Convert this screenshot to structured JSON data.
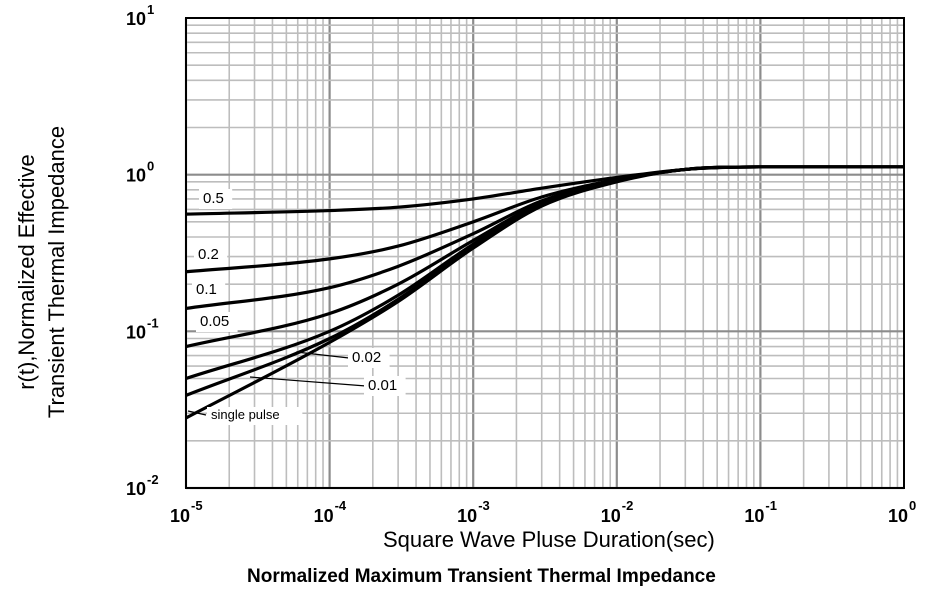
{
  "chart_data": {
    "type": "line",
    "title": "Normalized Maximum Transient Thermal Impedance",
    "xlabel": "Square Wave Pluse Duration(sec)",
    "ylabel_lines": [
      "r(t),Normalized Effective",
      "Transient Thermal Impedance"
    ],
    "x_scale": "log",
    "y_scale": "log",
    "xlim": [
      1e-05,
      1
    ],
    "ylim": [
      0.01,
      10
    ],
    "grid": true,
    "x_ticks": [
      {
        "base": "10",
        "exp": "-5"
      },
      {
        "base": "10",
        "exp": "-4"
      },
      {
        "base": "10",
        "exp": "-3"
      },
      {
        "base": "10",
        "exp": "-2"
      },
      {
        "base": "10",
        "exp": "-1"
      },
      {
        "base": "10",
        "exp": "0"
      }
    ],
    "y_ticks": [
      {
        "base": "10",
        "exp": "-2"
      },
      {
        "base": "10",
        "exp": "-1"
      },
      {
        "base": "10",
        "exp": "0"
      },
      {
        "base": "10",
        "exp": "1"
      }
    ],
    "series": [
      {
        "name": "0.5",
        "x": [
          1e-05,
          0.0001,
          0.0003,
          0.001,
          0.003,
          0.01,
          0.03,
          0.1,
          1
        ],
        "y": [
          0.56,
          0.59,
          0.62,
          0.7,
          0.82,
          0.96,
          1.08,
          1.12,
          1.12
        ]
      },
      {
        "name": "0.2",
        "x": [
          1e-05,
          0.0001,
          0.0003,
          0.001,
          0.003,
          0.01,
          0.03,
          0.1,
          1
        ],
        "y": [
          0.24,
          0.29,
          0.35,
          0.5,
          0.72,
          0.93,
          1.08,
          1.12,
          1.12
        ]
      },
      {
        "name": "0.1",
        "x": [
          1e-05,
          0.0001,
          0.0003,
          0.001,
          0.003,
          0.01,
          0.03,
          0.1,
          1
        ],
        "y": [
          0.14,
          0.19,
          0.26,
          0.42,
          0.68,
          0.92,
          1.08,
          1.12,
          1.12
        ]
      },
      {
        "name": "0.05",
        "x": [
          1e-05,
          0.0001,
          0.0003,
          0.001,
          0.003,
          0.01,
          0.03,
          0.1,
          1
        ],
        "y": [
          0.08,
          0.13,
          0.2,
          0.38,
          0.66,
          0.92,
          1.08,
          1.12,
          1.12
        ]
      },
      {
        "name": "0.02",
        "x": [
          1e-05,
          0.0001,
          0.0003,
          0.001,
          0.003,
          0.01,
          0.03,
          0.1,
          1
        ],
        "y": [
          0.05,
          0.1,
          0.17,
          0.36,
          0.65,
          0.91,
          1.08,
          1.12,
          1.12
        ]
      },
      {
        "name": "0.01",
        "x": [
          1e-05,
          0.0001,
          0.0003,
          0.001,
          0.003,
          0.01,
          0.03,
          0.1,
          1
        ],
        "y": [
          0.039,
          0.09,
          0.16,
          0.35,
          0.64,
          0.91,
          1.08,
          1.12,
          1.12
        ]
      },
      {
        "name": "single pulse",
        "x": [
          1e-05,
          0.0001,
          0.0003,
          0.001,
          0.003,
          0.01,
          0.03,
          0.1,
          1
        ],
        "y": [
          0.028,
          0.085,
          0.155,
          0.34,
          0.63,
          0.9,
          1.08,
          1.12,
          1.12
        ]
      }
    ],
    "annotations": [
      "0.5",
      "0.2",
      "0.1",
      "0.05",
      "0.02",
      "0.01",
      "single pulse"
    ]
  }
}
